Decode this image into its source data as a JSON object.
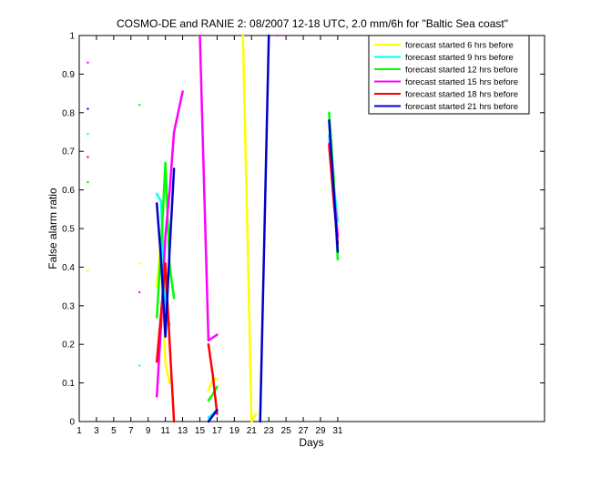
{
  "chart_data": {
    "type": "line",
    "title": "COSMO-DE and RANIE 2: 08/2007 12-18 UTC, 2.0 mm/6h for \"Baltic Sea coast\"",
    "xlabel": "Days",
    "ylabel": "False alarm ratio",
    "xlim": [
      1,
      55
    ],
    "ylim": [
      0,
      1
    ],
    "xticks": [
      1,
      3,
      5,
      7,
      9,
      11,
      13,
      15,
      17,
      19,
      21,
      23,
      25,
      27,
      29,
      31
    ],
    "yticks": [
      0,
      0.1,
      0.2,
      0.3,
      0.4,
      0.5,
      0.6,
      0.7,
      0.8,
      0.9,
      1
    ],
    "xtick_labels": [
      "1",
      "3",
      "5",
      "7",
      "9",
      "11",
      "13",
      "15",
      "17",
      "19",
      "21",
      "23",
      "25",
      "27",
      "29",
      "31"
    ],
    "ytick_labels": [
      "0",
      "0.1",
      "0.2",
      "0.3",
      "0.4",
      "0.5",
      "0.6",
      "0.7",
      "0.8",
      "0.9",
      "1"
    ],
    "grid": false,
    "legend_position": "top-right",
    "series": [
      {
        "name": "forecast started 6 hrs before",
        "color": "#ffff00",
        "segments": [
          [
            [
              10,
              0.35
            ],
            [
              10.5,
              0.47
            ],
            [
              11,
              0.15
            ],
            [
              11.5,
              0.1
            ]
          ],
          [
            [
              16,
              0.08
            ],
            [
              16.5,
              0.11
            ],
            [
              17,
              0.11
            ]
          ],
          [
            [
              20,
              1.0
            ],
            [
              21,
              0.0
            ],
            [
              21.5,
              0.02
            ]
          ]
        ],
        "points": [
          [
            2,
            0.39
          ],
          [
            8,
            0.41
          ]
        ]
      },
      {
        "name": "forecast started 9 hrs before",
        "color": "#00ffff",
        "segments": [
          [
            [
              10,
              0.59
            ],
            [
              10.5,
              0.57
            ],
            [
              11,
              0.3
            ],
            [
              11.5,
              0.25
            ]
          ],
          [
            [
              16,
              0.01
            ],
            [
              16.5,
              0.02
            ],
            [
              17,
              0.03
            ]
          ],
          [
            [
              30,
              0.74
            ],
            [
              30.5,
              0.62
            ],
            [
              31,
              0.52
            ]
          ]
        ],
        "points": [
          [
            2,
            0.745
          ],
          [
            8,
            0.145
          ]
        ]
      },
      {
        "name": "forecast started 12 hrs before",
        "color": "#00ff00",
        "segments": [
          [
            [
              10,
              0.27
            ],
            [
              10.5,
              0.45
            ],
            [
              11,
              0.67
            ],
            [
              11.5,
              0.4
            ],
            [
              12,
              0.32
            ]
          ],
          [
            [
              16,
              0.055
            ],
            [
              16.5,
              0.07
            ],
            [
              17,
              0.09
            ]
          ],
          [
            [
              30,
              0.8
            ],
            [
              30.5,
              0.64
            ],
            [
              31,
              0.42
            ]
          ]
        ],
        "points": [
          [
            2,
            0.62
          ],
          [
            8,
            0.82
          ]
        ]
      },
      {
        "name": "forecast started 15 hrs before",
        "color": "#ff00ff",
        "segments": [
          [
            [
              10,
              0.065
            ],
            [
              10.5,
              0.25
            ],
            [
              11,
              0.48
            ],
            [
              11.5,
              0.6
            ],
            [
              12,
              0.75
            ],
            [
              13,
              0.855
            ]
          ],
          [
            [
              15,
              1.0
            ],
            [
              16,
              0.21
            ],
            [
              17,
              0.225
            ]
          ],
          [
            [
              30,
              0.72
            ],
            [
              30.5,
              0.6
            ],
            [
              31,
              0.48
            ]
          ]
        ],
        "points": [
          [
            2,
            0.93
          ],
          [
            8,
            0.335
          ],
          [
            24,
            1.0
          ]
        ]
      },
      {
        "name": "forecast started 18 hrs before",
        "color": "#ff0000",
        "segments": [
          [
            [
              10,
              0.155
            ],
            [
              10.5,
              0.28
            ],
            [
              11,
              0.41
            ],
            [
              11.5,
              0.2
            ],
            [
              12,
              0.0
            ]
          ],
          [
            [
              16,
              0.2
            ],
            [
              16.5,
              0.12
            ],
            [
              17,
              0.02
            ]
          ],
          [
            [
              30,
              0.715
            ],
            [
              30.5,
              0.58
            ],
            [
              31,
              0.46
            ]
          ]
        ],
        "points": [
          [
            2,
            0.685
          ]
        ]
      },
      {
        "name": "forecast started 21 hrs before",
        "color": "#0000cc",
        "segments": [
          [
            [
              10,
              0.565
            ],
            [
              10.5,
              0.42
            ],
            [
              11,
              0.22
            ],
            [
              11.5,
              0.45
            ],
            [
              12,
              0.655
            ]
          ],
          [
            [
              16,
              0.0
            ],
            [
              16.5,
              0.015
            ],
            [
              17,
              0.03
            ]
          ],
          [
            [
              22,
              0.0
            ],
            [
              22.5,
              0.5
            ],
            [
              23,
              1.0
            ]
          ],
          [
            [
              30,
              0.78
            ],
            [
              30.5,
              0.61
            ],
            [
              31,
              0.44
            ]
          ]
        ],
        "points": [
          [
            2,
            0.81
          ]
        ]
      }
    ]
  }
}
